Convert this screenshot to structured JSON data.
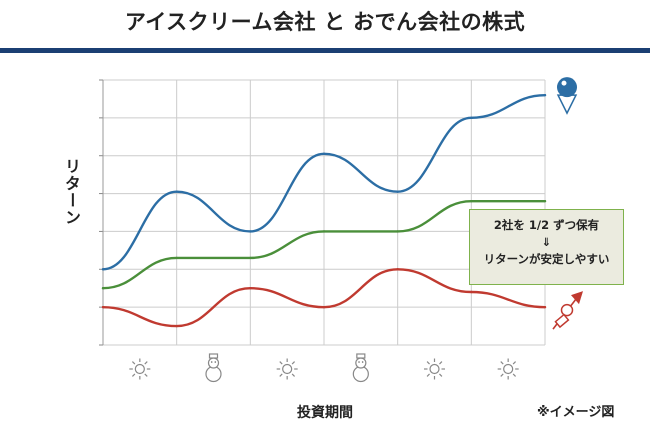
{
  "title": "アイスクリーム会社 と おでん会社の株式",
  "colors": {
    "title_rule": "#1b3f73",
    "grid": "#cccccc",
    "ice_cream": "#2c6ea5",
    "combined": "#4a8f3a",
    "oden": "#c03a30",
    "callout_bg": "#ebebdf",
    "callout_border": "#7fb24c"
  },
  "callout": {
    "line1": "2社を 1/2 ずつ保有",
    "arrow": "⇓",
    "line2": "リターンが安定しやすい"
  },
  "note": "※イメージ図",
  "chart_data": {
    "type": "line",
    "title": "アイスクリーム会社 と おでん会社の株式",
    "xlabel": "投資期間",
    "ylabel": "リターン",
    "x": [
      0,
      1,
      2,
      3,
      4,
      5,
      6
    ],
    "ylim": [
      0,
      7
    ],
    "grid": true,
    "period_icons": [
      "sun-icon",
      "snowman-icon",
      "sun-icon",
      "snowman-icon",
      "sun-icon",
      "sun-icon"
    ],
    "series": [
      {
        "key": "ice_cream",
        "values": [
          2.0,
          4.05,
          3.0,
          5.05,
          4.05,
          6.0,
          6.6
        ],
        "end_icon": "ice-cream-icon"
      },
      {
        "key": "combined",
        "values": [
          1.5,
          2.3,
          2.3,
          3.0,
          3.0,
          3.8,
          3.8
        ]
      },
      {
        "key": "oden",
        "values": [
          1.0,
          0.5,
          1.5,
          1.0,
          2.0,
          1.4,
          1.0
        ],
        "end_icon": "oden-icon"
      }
    ]
  }
}
